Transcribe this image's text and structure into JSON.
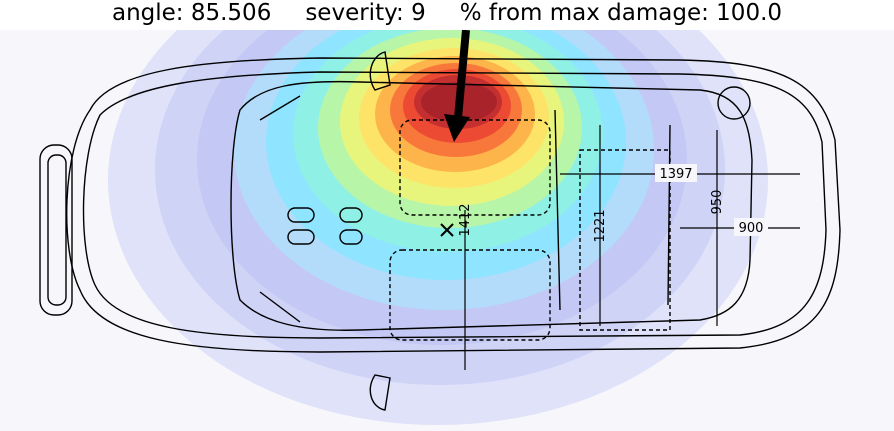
{
  "header": {
    "angle_label": "angle:",
    "angle_value": "85.506",
    "severity_label": "severity:",
    "severity_value": "9",
    "damage_label": "% from max damage:",
    "damage_value": "100.0"
  },
  "dimensions": {
    "length_a": "1397",
    "length_b": "900",
    "width_a": "950",
    "width_b": "1221",
    "width_c": "1412"
  },
  "colors": {
    "heat_max": "#b2182b",
    "heat_high": "#e34a33",
    "heat_mid": "#fed976",
    "heat_low": "#7fd6ff",
    "heat_min": "#c9cdf5",
    "arrow": "#000000"
  },
  "icons": {
    "impact_arrow": "impact-arrow-icon",
    "center_marker": "impact-center-x-icon"
  }
}
